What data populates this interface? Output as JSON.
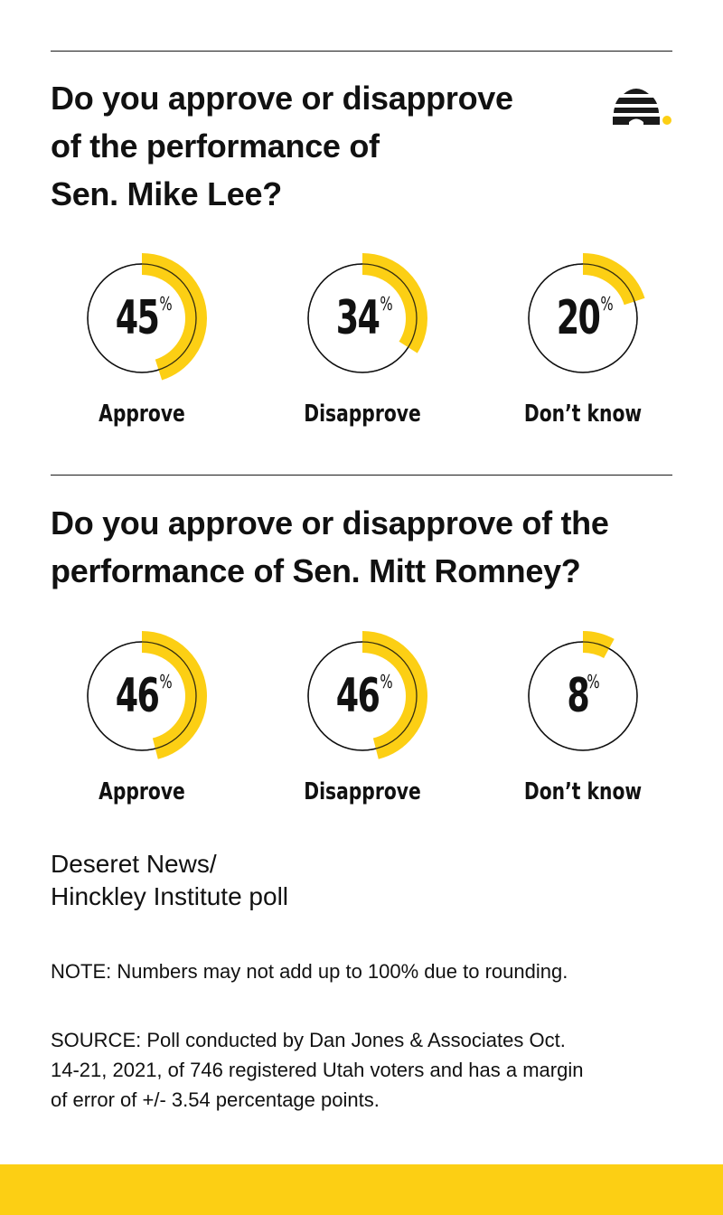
{
  "colors": {
    "accent": "#fccf14",
    "text": "#111111",
    "background": "#ffffff"
  },
  "logo": {
    "icon": "beehive-icon"
  },
  "sections": [
    {
      "question": "Do you approve or disapprove of the performance of Sen. Mike Lee?",
      "question_lines": [
        "Do you approve or disapprove",
        "of the performance of",
        "Sen. Mike Lee?"
      ],
      "items": [
        {
          "value": "45",
          "unit": "%",
          "label": "Approve"
        },
        {
          "value": "34",
          "unit": "%",
          "label": "Disapprove"
        },
        {
          "value": "20",
          "unit": "%",
          "label": "Don’t know"
        }
      ]
    },
    {
      "question": "Do you approve or disapprove of the performance of Sen. Mitt Romney?",
      "question_lines": [
        "Do you approve or disapprove of the",
        "performance of Sen. Mitt Romney?"
      ],
      "items": [
        {
          "value": "46",
          "unit": "%",
          "label": "Approve"
        },
        {
          "value": "46",
          "unit": "%",
          "label": "Disapprove"
        },
        {
          "value": "8",
          "unit": "%",
          "label": "Don’t know"
        }
      ]
    }
  ],
  "footer": {
    "source_name_lines": [
      "Deseret News/",
      "Hinckley Institute poll"
    ],
    "note": "NOTE: Numbers may not add up to 100% due to rounding.",
    "source_lines": [
      "SOURCE: Poll conducted by Dan Jones & Associates Oct.",
      "14-21, 2021, of 746 registered Utah voters and has a margin",
      "of error of +/- 3.54 percentage points."
    ]
  },
  "chart_data": [
    {
      "type": "pie",
      "title": "Do you approve or disapprove of the performance of Sen. Mike Lee?",
      "categories": [
        "Approve",
        "Disapprove",
        "Don’t know"
      ],
      "values": [
        45,
        34,
        20
      ],
      "unit": "%"
    },
    {
      "type": "pie",
      "title": "Do you approve or disapprove of the performance of Sen. Mitt Romney?",
      "categories": [
        "Approve",
        "Disapprove",
        "Don’t know"
      ],
      "values": [
        46,
        46,
        8
      ],
      "unit": "%"
    }
  ]
}
